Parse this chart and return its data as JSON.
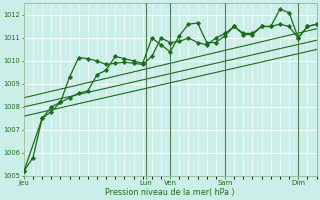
{
  "xlabel": "Pression niveau de la mer( hPa )",
  "bg_color": "#cceee8",
  "grid_color": "#ffffff",
  "line_color": "#1a6b1a",
  "dark_line_color": "#336633",
  "ylim": [
    1005,
    1012.5
  ],
  "yticks": [
    1005,
    1006,
    1007,
    1008,
    1009,
    1010,
    1011,
    1012
  ],
  "xlim": [
    0,
    96
  ],
  "day_labels": [
    "Jeu",
    "Lun",
    "Ven",
    "Sam",
    "Dim"
  ],
  "day_positions": [
    0,
    40,
    48,
    66,
    90
  ],
  "vline_positions": [
    40,
    48,
    66,
    90
  ],
  "series1_x": [
    0,
    3,
    6,
    9,
    12,
    15,
    18,
    21,
    24,
    27,
    30,
    33,
    36,
    39,
    42,
    45,
    48,
    51,
    54,
    57,
    60,
    63,
    66,
    69,
    72,
    75,
    78,
    81,
    84,
    87,
    90,
    93,
    96
  ],
  "series1_y": [
    1005.2,
    1005.8,
    1007.5,
    1008.0,
    1008.2,
    1008.4,
    1008.6,
    1008.7,
    1009.4,
    1009.6,
    1010.2,
    1010.1,
    1010.0,
    1009.9,
    1011.0,
    1010.7,
    1010.4,
    1011.1,
    1011.6,
    1011.65,
    1010.8,
    1010.8,
    1011.1,
    1011.5,
    1011.15,
    1011.15,
    1011.5,
    1011.5,
    1012.25,
    1012.1,
    1011.0,
    1011.5,
    1011.6
  ],
  "series2_x": [
    0,
    6,
    9,
    12,
    15,
    18,
    21,
    24,
    27,
    30,
    33,
    36,
    39,
    42,
    45,
    48,
    51,
    54,
    57,
    60,
    63,
    66,
    69,
    72,
    75,
    78,
    81,
    84,
    87,
    90,
    93,
    96
  ],
  "series2_y": [
    1005.2,
    1007.5,
    1007.8,
    1008.2,
    1009.3,
    1010.15,
    1010.1,
    1010.0,
    1009.85,
    1009.9,
    1009.95,
    1009.9,
    1009.85,
    1010.2,
    1011.0,
    1010.8,
    1010.85,
    1011.0,
    1010.8,
    1010.7,
    1011.0,
    1011.2,
    1011.5,
    1011.2,
    1011.2,
    1011.5,
    1011.5,
    1011.6,
    1011.5,
    1011.0,
    1011.5,
    1011.6
  ],
  "trend1_x": [
    0,
    96
  ],
  "trend1_y": [
    1007.6,
    1010.5
  ],
  "trend2_x": [
    0,
    96
  ],
  "trend2_y": [
    1008.0,
    1010.9
  ],
  "trend3_x": [
    0,
    96
  ],
  "trend3_y": [
    1008.4,
    1011.4
  ]
}
